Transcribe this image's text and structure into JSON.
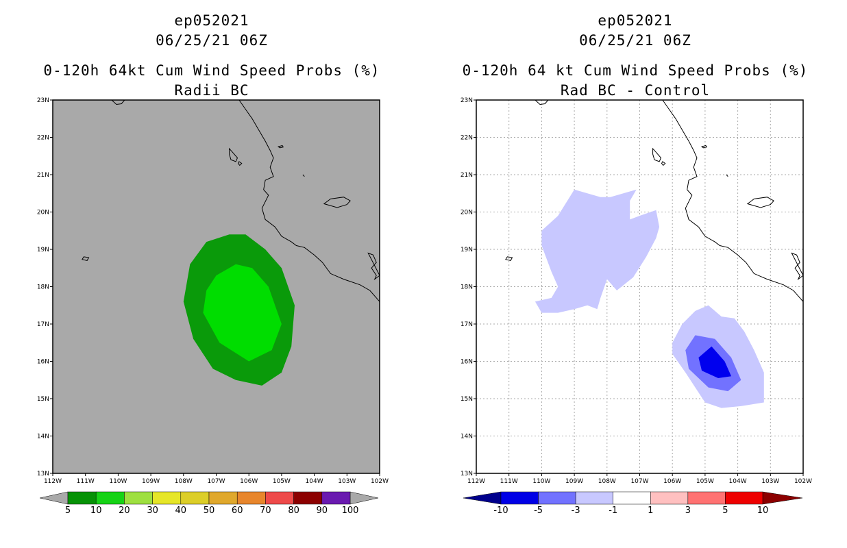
{
  "colors": {
    "land_bg": "#a9a9a9",
    "coast": "#000000",
    "green_dark": "#0a9a0a",
    "green_light": "#00dd00",
    "blue_light": "#c8c8ff",
    "blue_mid": "#7272ff",
    "blue_dark": "#0000ee",
    "grid": "#aaaaaa"
  },
  "chart_data": [
    {
      "type": "heatmap",
      "storm_id": "ep052021",
      "datetime": "06/25/21 06Z",
      "title": "0-120h 64kt Cum Wind Speed Probs (%)",
      "subtitle": "Radii BC",
      "xlim": [
        -112,
        -102
      ],
      "ylim": [
        13,
        23
      ],
      "x_ticks": [
        "112W",
        "111W",
        "110W",
        "109W",
        "108W",
        "107W",
        "106W",
        "105W",
        "104W",
        "103W",
        "102W"
      ],
      "y_ticks": [
        "13N",
        "14N",
        "15N",
        "16N",
        "17N",
        "18N",
        "19N",
        "20N",
        "21N",
        "22N",
        "23N"
      ],
      "grid": false,
      "colorbar": {
        "labels": [
          "5",
          "10",
          "20",
          "30",
          "40",
          "50",
          "60",
          "70",
          "80",
          "90",
          "100"
        ],
        "colors": [
          "#069206",
          "#16d316",
          "#9ee040",
          "#e6e628",
          "#dcce28",
          "#e0a82c",
          "#e8862c",
          "#ee4a4a",
          "#8c0000",
          "#6a1ab0"
        ]
      },
      "contours": [
        {
          "level": "5-10",
          "color": "#0a9a0a",
          "points": [
            [
              -107.3,
              19.2
            ],
            [
              -106.6,
              19.4
            ],
            [
              -106.1,
              19.4
            ],
            [
              -105.5,
              19.0
            ],
            [
              -105.0,
              18.5
            ],
            [
              -104.6,
              17.5
            ],
            [
              -104.7,
              16.4
            ],
            [
              -105.0,
              15.7
            ],
            [
              -105.6,
              15.35
            ],
            [
              -106.4,
              15.5
            ],
            [
              -107.1,
              15.8
            ],
            [
              -107.7,
              16.6
            ],
            [
              -108.0,
              17.6
            ],
            [
              -107.8,
              18.6
            ]
          ]
        },
        {
          "level": "10-20",
          "color": "#00dd00",
          "points": [
            [
              -107.0,
              18.3
            ],
            [
              -106.4,
              18.6
            ],
            [
              -105.9,
              18.5
            ],
            [
              -105.4,
              18.0
            ],
            [
              -105.0,
              17.0
            ],
            [
              -105.3,
              16.3
            ],
            [
              -106.0,
              16.0
            ],
            [
              -106.9,
              16.5
            ],
            [
              -107.4,
              17.3
            ],
            [
              -107.3,
              17.9
            ]
          ]
        }
      ]
    },
    {
      "type": "heatmap",
      "storm_id": "ep052021",
      "datetime": "06/25/21 06Z",
      "title": "0-120h 64 kt Cum Wind Speed Probs (%)",
      "subtitle": "Rad BC - Control",
      "xlim": [
        -112,
        -102
      ],
      "ylim": [
        13,
        23
      ],
      "x_ticks": [
        "112W",
        "111W",
        "110W",
        "109W",
        "108W",
        "107W",
        "106W",
        "105W",
        "104W",
        "103W",
        "102W"
      ],
      "y_ticks": [
        "13N",
        "14N",
        "15N",
        "16N",
        "17N",
        "18N",
        "19N",
        "20N",
        "21N",
        "22N",
        "23N"
      ],
      "grid": true,
      "colorbar": {
        "labels": [
          "-10",
          "-5",
          "-3",
          "-1",
          "1",
          "3",
          "5",
          "10"
        ],
        "colors": [
          "#00008c",
          "#0000e6",
          "#7272ff",
          "#c8c8ff",
          "#ffffff",
          "#ffc0c0",
          "#ff7272",
          "#ee0000",
          "#8c0000"
        ]
      },
      "contours": [
        {
          "level": "-3 to -1",
          "color": "#c8c8ff",
          "points": [
            [
              -109.0,
              20.6
            ],
            [
              -108.6,
              20.5
            ],
            [
              -108.2,
              20.4
            ],
            [
              -107.9,
              20.4
            ],
            [
              -107.5,
              20.5
            ],
            [
              -107.1,
              20.6
            ],
            [
              -107.3,
              20.3
            ],
            [
              -107.3,
              19.8
            ],
            [
              -107.0,
              19.9
            ],
            [
              -106.5,
              20.05
            ],
            [
              -106.4,
              19.6
            ],
            [
              -106.5,
              19.3
            ],
            [
              -106.8,
              18.8
            ],
            [
              -107.2,
              18.25
            ],
            [
              -107.7,
              17.9
            ],
            [
              -108.0,
              18.2
            ],
            [
              -108.2,
              17.7
            ],
            [
              -108.3,
              17.4
            ],
            [
              -108.6,
              17.5
            ],
            [
              -109.0,
              17.4
            ],
            [
              -109.5,
              17.3
            ],
            [
              -110.0,
              17.3
            ],
            [
              -110.2,
              17.6
            ],
            [
              -109.7,
              17.7
            ],
            [
              -109.5,
              18.0
            ],
            [
              -109.7,
              18.4
            ],
            [
              -110.0,
              19.1
            ],
            [
              -110.0,
              19.5
            ],
            [
              -109.5,
              19.9
            ]
          ]
        },
        {
          "level": "-3 to -1",
          "color": "#c8c8ff",
          "points": [
            [
              -104.9,
              17.5
            ],
            [
              -104.5,
              17.2
            ],
            [
              -104.1,
              17.15
            ],
            [
              -103.8,
              16.8
            ],
            [
              -103.5,
              16.3
            ],
            [
              -103.2,
              15.7
            ],
            [
              -103.2,
              14.9
            ],
            [
              -103.9,
              14.8
            ],
            [
              -104.5,
              14.75
            ],
            [
              -105.0,
              14.9
            ],
            [
              -105.6,
              15.7
            ],
            [
              -106.0,
              16.2
            ],
            [
              -106.0,
              16.5
            ],
            [
              -105.7,
              17.0
            ],
            [
              -105.3,
              17.35
            ]
          ]
        },
        {
          "level": "-5 to -3",
          "color": "#7272ff",
          "points": [
            [
              -105.3,
              16.7
            ],
            [
              -104.7,
              16.6
            ],
            [
              -104.2,
              16.1
            ],
            [
              -103.9,
              15.5
            ],
            [
              -104.3,
              15.2
            ],
            [
              -104.9,
              15.3
            ],
            [
              -105.5,
              15.8
            ],
            [
              -105.6,
              16.3
            ]
          ]
        },
        {
          "level": "-10 to -5",
          "color": "#0000ee",
          "points": [
            [
              -104.8,
              16.4
            ],
            [
              -104.4,
              16.0
            ],
            [
              -104.2,
              15.6
            ],
            [
              -104.6,
              15.55
            ],
            [
              -105.1,
              15.75
            ],
            [
              -105.2,
              16.1
            ]
          ]
        }
      ]
    }
  ]
}
